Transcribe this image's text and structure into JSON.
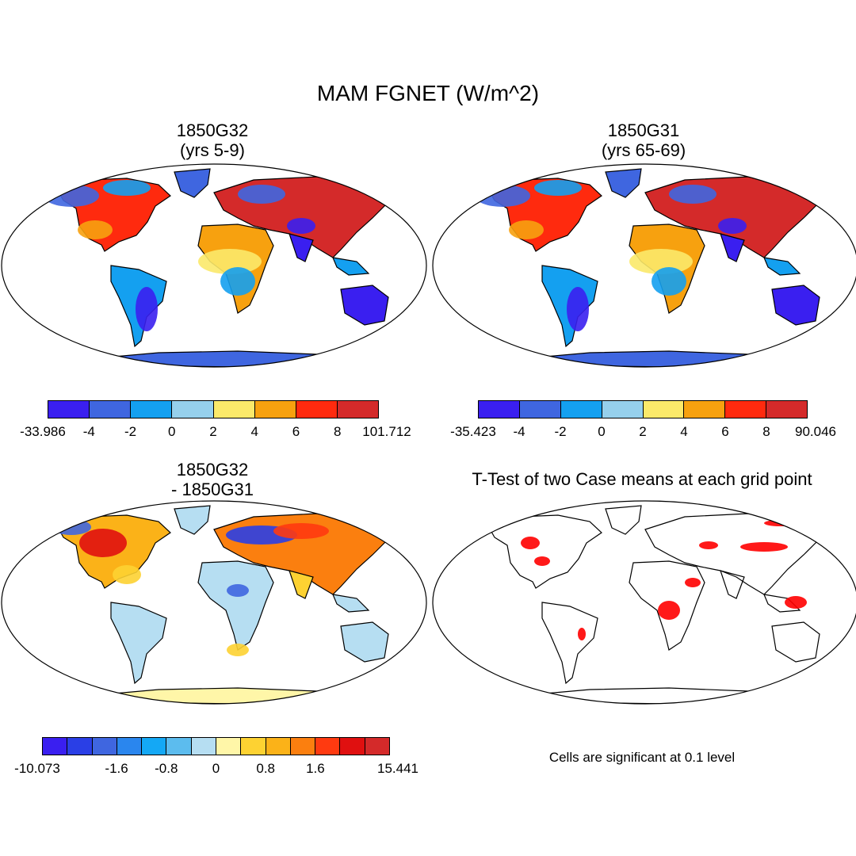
{
  "title": "MAM FGNET (W/m^2)",
  "panels": [
    {
      "id": "p1",
      "title_line1": "1850G32",
      "title_line2": "(yrs 5-9)",
      "colorbar": {
        "colors": [
          "#3a1ff0",
          "#3f66e0",
          "#14a0f0",
          "#96d0ec",
          "#fbe96a",
          "#f7a10f",
          "#ff2a0e",
          "#d42a2a"
        ],
        "labels": [
          "-33.986",
          "-4",
          "-2",
          "0",
          "2",
          "4",
          "6",
          "8",
          "101.712"
        ]
      }
    },
    {
      "id": "p2",
      "title_line1": "1850G31",
      "title_line2": "(yrs 65-69)",
      "colorbar": {
        "colors": [
          "#3a1ff0",
          "#3f66e0",
          "#14a0f0",
          "#96d0ec",
          "#fbe96a",
          "#f7a10f",
          "#ff2a0e",
          "#d42a2a"
        ],
        "labels": [
          "-35.423",
          "-4",
          "-2",
          "0",
          "2",
          "4",
          "6",
          "8",
          "90.046"
        ]
      }
    },
    {
      "id": "p3",
      "title_line1": "1850G32",
      "title_line2": "- 1850G31",
      "colorbar": {
        "colors": [
          "#3a1ff0",
          "#2a3fe6",
          "#3f66e0",
          "#2a86ee",
          "#14a8f5",
          "#5cbcee",
          "#b6def2",
          "#fff6a8",
          "#fdd232",
          "#fbb218",
          "#fb7f0f",
          "#ff3a10",
          "#e01010",
          "#d42a2a"
        ],
        "labels": [
          "-10.073",
          "-1.6",
          "-0.8",
          "0",
          "0.8",
          "1.6",
          "15.441"
        ]
      }
    },
    {
      "id": "p4",
      "title_line1": "T-Test of two Case means at each grid point",
      "title_line2": ""
    }
  ],
  "note": "Cells are significant at 0.1 level",
  "map_colors": {
    "ocean": "#ffffff",
    "outline": "#000000",
    "significant": "#ff0000"
  }
}
